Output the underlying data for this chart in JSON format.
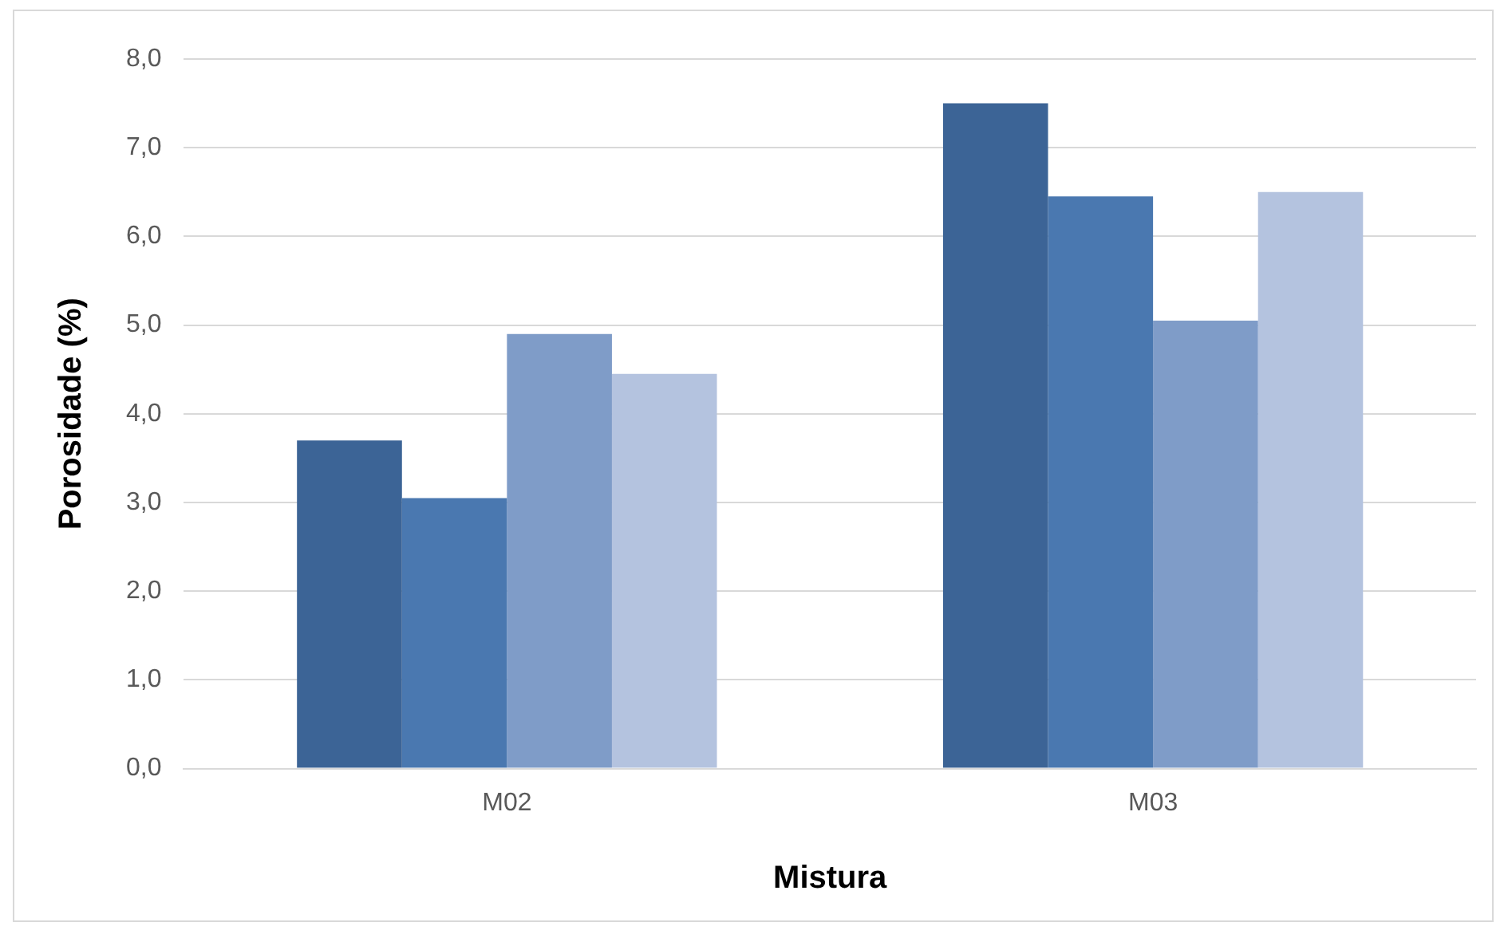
{
  "chart_data": {
    "type": "bar",
    "xlabel": "Mistura",
    "ylabel": "Porosidade (%)",
    "categories": [
      "M02",
      "M03"
    ],
    "series": [
      {
        "color": "#3c6496",
        "values": [
          3.7,
          7.5
        ]
      },
      {
        "color": "#4a78b0",
        "values": [
          3.05,
          6.45
        ]
      },
      {
        "color": "#7f9cc8",
        "values": [
          4.9,
          5.05
        ]
      },
      {
        "color": "#b4c3df",
        "values": [
          4.45,
          6.5
        ]
      }
    ],
    "ylim": [
      0,
      8
    ],
    "yticks": [
      {
        "value": 0,
        "label": "0,0"
      },
      {
        "value": 1,
        "label": "1,0"
      },
      {
        "value": 2,
        "label": "2,0"
      },
      {
        "value": 3,
        "label": "3,0"
      },
      {
        "value": 4,
        "label": "4,0"
      },
      {
        "value": 5,
        "label": "5,0"
      },
      {
        "value": 6,
        "label": "6,0"
      },
      {
        "value": 7,
        "label": "7,0"
      },
      {
        "value": 8,
        "label": "8,0"
      }
    ],
    "grid": "y",
    "legend": false
  }
}
